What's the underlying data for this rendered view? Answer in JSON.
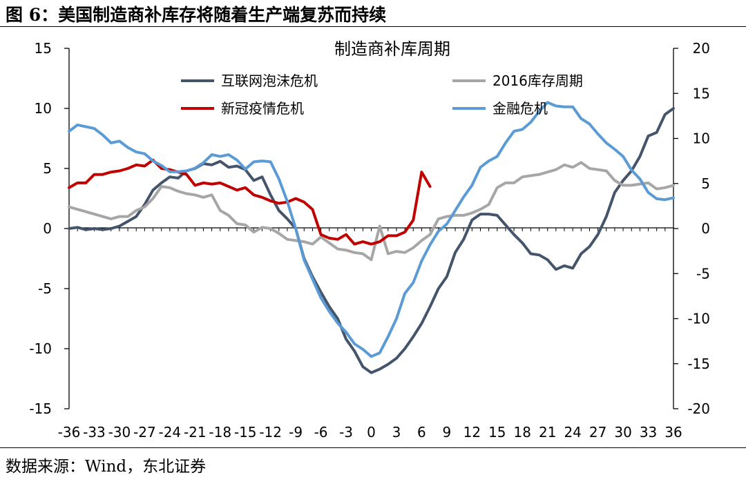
{
  "figure": {
    "label": "图 6：",
    "title": "美国制造商补库存将随着生产端复苏而持续",
    "source": "数据来源：Wind，东北证券"
  },
  "chart_data": {
    "type": "line",
    "title": "制造商补库周期",
    "xlabel": "",
    "ylabel": "",
    "x": [
      -36,
      -35,
      -34,
      -33,
      -32,
      -31,
      -30,
      -29,
      -28,
      -27,
      -26,
      -25,
      -24,
      -23,
      -22,
      -21,
      -20,
      -19,
      -18,
      -17,
      -16,
      -15,
      -14,
      -13,
      -12,
      -11,
      -10,
      -9,
      -8,
      -7,
      -6,
      -5,
      -4,
      -3,
      -2,
      -1,
      0,
      1,
      2,
      3,
      4,
      5,
      6,
      7,
      8,
      9,
      10,
      11,
      12,
      13,
      14,
      15,
      16,
      17,
      18,
      19,
      20,
      21,
      22,
      23,
      24,
      25,
      26,
      27,
      28,
      29,
      30,
      31,
      32,
      33,
      34,
      35,
      36
    ],
    "xticks": [
      -36,
      -33,
      -30,
      -27,
      -24,
      -21,
      -18,
      -15,
      -12,
      -9,
      -6,
      -3,
      0,
      3,
      6,
      9,
      12,
      15,
      18,
      21,
      24,
      27,
      30,
      33,
      36
    ],
    "ylim_left": [
      -15,
      15
    ],
    "yticks_left": [
      -15,
      -10,
      -5,
      0,
      5,
      10,
      15
    ],
    "ylim_right": [
      -20,
      20
    ],
    "yticks_right": [
      -20,
      -15,
      -10,
      -5,
      0,
      5,
      10,
      15,
      20
    ],
    "legend_position": "top",
    "grid": false,
    "series": [
      {
        "name": "互联网泡沫危机",
        "axis": "left",
        "color": "#44546A",
        "values": [
          0,
          0.1,
          -0.1,
          0,
          -0.1,
          0,
          0.2,
          0.6,
          1.0,
          2.0,
          3.2,
          3.8,
          4.3,
          4.2,
          4.8,
          5.0,
          5.4,
          5.3,
          5.6,
          5.1,
          5.2,
          4.9,
          4.0,
          4.3,
          2.8,
          1.5,
          0.8,
          0.0,
          -2.5,
          -4.0,
          -5.3,
          -6.5,
          -7.5,
          -9.2,
          -10.2,
          -11.5,
          -12.0,
          -11.7,
          -11.3,
          -10.8,
          -10.0,
          -9.0,
          -7.9,
          -6.5,
          -5.0,
          -4.0,
          -2.0,
          -0.9,
          0.7,
          1.2,
          1.2,
          1.1,
          0.3,
          -0.5,
          -1.2,
          -2.1,
          -2.2,
          -2.6,
          -3.4,
          -3.1,
          -3.3,
          -2.1,
          -1.5,
          -0.5,
          1.0,
          3.0,
          4.0,
          4.8,
          6.0,
          7.7,
          8.0,
          9.5,
          10.0
        ]
      },
      {
        "name": "2016库存周期",
        "axis": "left",
        "color": "#A6A6A6",
        "values": [
          1.8,
          1.6,
          1.4,
          1.2,
          1.0,
          0.8,
          1.0,
          1.0,
          1.5,
          1.8,
          2.5,
          3.5,
          3.4,
          3.1,
          2.9,
          2.8,
          2.6,
          2.8,
          1.5,
          1.1,
          0.4,
          0.3,
          -0.3,
          0.1,
          0.0,
          -0.4,
          -0.9,
          -1.0,
          -1.1,
          -1.3,
          -0.7,
          -1.2,
          -1.7,
          -1.8,
          -2.0,
          -2.1,
          -2.6,
          0.2,
          -2.1,
          -1.9,
          -2.0,
          -1.6,
          -1.0,
          -0.5,
          0.8,
          1.0,
          1.1,
          1.1,
          1.3,
          1.6,
          2.0,
          3.4,
          3.8,
          3.8,
          4.3,
          4.4,
          4.5,
          4.7,
          4.9,
          5.3,
          5.1,
          5.5,
          5.0,
          4.9,
          4.8,
          4.0,
          3.6,
          3.6,
          3.7,
          3.8,
          3.3,
          3.4,
          3.6
        ]
      },
      {
        "name": "新冠疫情危机",
        "axis": "left",
        "color": "#C00000",
        "values": [
          3.4,
          3.8,
          3.8,
          4.5,
          4.5,
          4.7,
          4.8,
          5.0,
          5.3,
          5.2,
          5.7,
          5.0,
          4.9,
          4.7,
          4.5,
          3.6,
          3.8,
          3.7,
          3.8,
          3.5,
          3.2,
          3.4,
          2.8,
          2.6,
          2.3,
          2.1,
          2.2,
          2.5,
          2.2,
          1.6,
          -0.5,
          -0.8,
          -0.9,
          -0.5,
          -1.3,
          -1.1,
          -1.3,
          -1.1,
          -0.6,
          -0.6,
          -0.3,
          0.7,
          4.7,
          3.5,
          null,
          null,
          null,
          null,
          null,
          null,
          null,
          null,
          null,
          null,
          null,
          null,
          null,
          null,
          null,
          null,
          null,
          null,
          null,
          null,
          null,
          null,
          null,
          null,
          null,
          null,
          null,
          null,
          null
        ]
      },
      {
        "name": "金融危机",
        "axis": "right",
        "color": "#5B9BD5",
        "values": [
          10.8,
          11.5,
          11.3,
          11.1,
          10.4,
          9.5,
          9.7,
          9.0,
          8.5,
          8.3,
          7.5,
          7.0,
          6.3,
          6.3,
          6.4,
          6.7,
          7.3,
          8.2,
          8.0,
          8.2,
          7.6,
          6.6,
          7.4,
          7.5,
          7.4,
          5.5,
          3.0,
          0.0,
          -3.5,
          -5.6,
          -7.7,
          -9.2,
          -10.5,
          -11.5,
          -12.8,
          -13.4,
          -14.2,
          -13.8,
          -12.0,
          -10.0,
          -7.2,
          -6.0,
          -3.6,
          -1.8,
          -0.3,
          0.5,
          2.0,
          3.5,
          4.8,
          6.8,
          7.5,
          8.0,
          9.5,
          10.8,
          11.0,
          11.8,
          13.0,
          14.0,
          13.6,
          13.5,
          13.5,
          12.2,
          11.6,
          10.5,
          9.5,
          8.8,
          8.0,
          6.5,
          5.5,
          4.0,
          3.3,
          3.2,
          3.4
        ]
      }
    ]
  }
}
